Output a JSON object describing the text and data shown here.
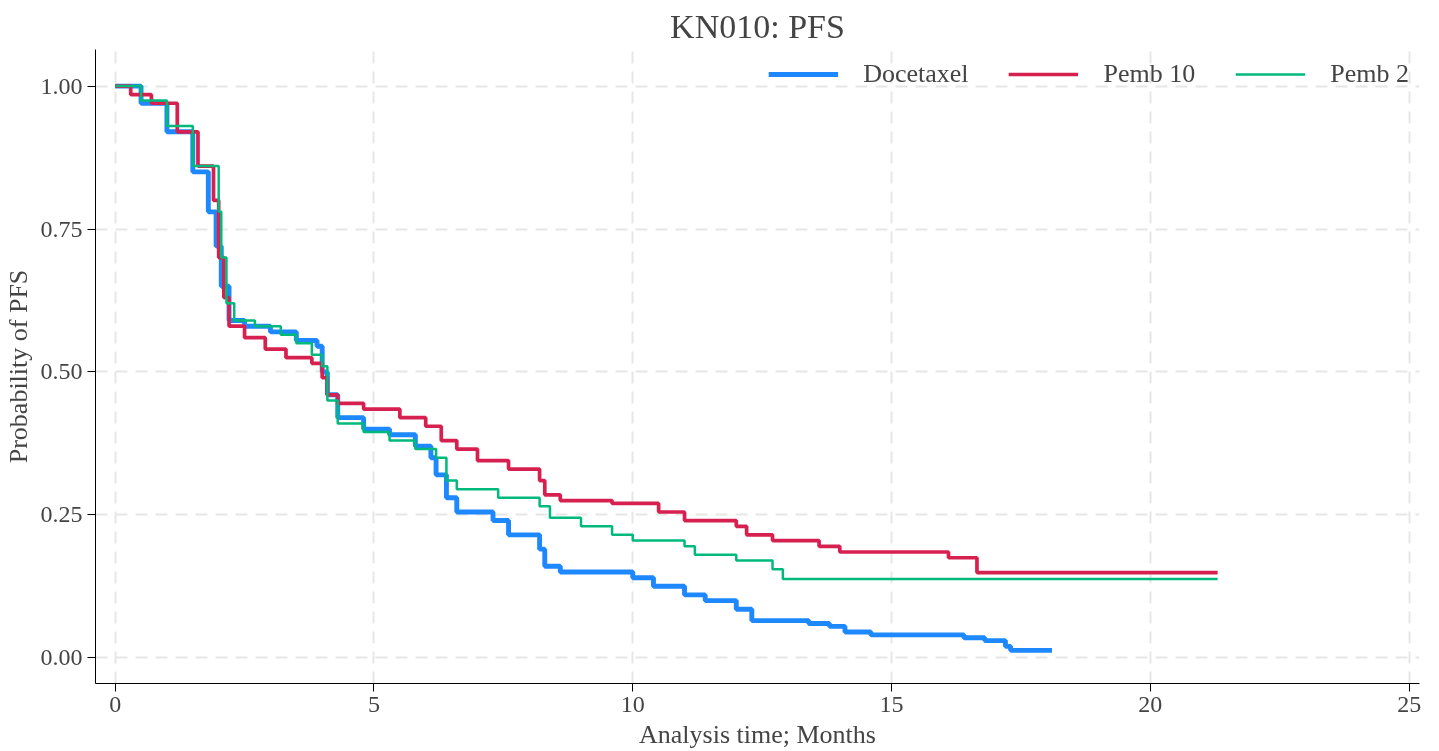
{
  "chart_data": {
    "type": "step",
    "title": "KN010: PFS",
    "xlabel": "Analysis time; Months",
    "ylabel": "Probability of PFS",
    "xlim": [
      -0.38,
      25.2
    ],
    "ylim": [
      -0.045,
      1.064
    ],
    "xticks": [
      0,
      5,
      10,
      15,
      20,
      25
    ],
    "yticks": [
      {
        "value": 0,
        "label": "0.00"
      },
      {
        "value": 0.25,
        "label": "0.25"
      },
      {
        "value": 0.5,
        "label": "0.50"
      },
      {
        "value": 0.75,
        "label": "0.75"
      },
      {
        "value": 1,
        "label": "1.00"
      }
    ],
    "grid": true,
    "legend": "top right",
    "line_style": "solid",
    "series": [
      {
        "name": "Docetaxel",
        "color": "#1e88ff",
        "x": [
          0,
          0.5,
          1.0,
          1.5,
          1.8,
          1.95,
          2.05,
          2.2,
          2.5,
          3.0,
          3.5,
          3.9,
          4.0,
          4.1,
          4.3,
          4.8,
          5.3,
          5.8,
          6.1,
          6.2,
          6.4,
          6.6,
          7.3,
          7.6,
          8.2,
          8.3,
          8.6,
          10.0,
          10.4,
          11.0,
          11.4,
          12.0,
          12.3,
          13.4,
          13.8,
          14.1,
          14.6,
          16.4,
          16.8,
          17.2,
          17.3,
          18.1
        ],
        "values": [
          1.0,
          0.97,
          0.92,
          0.85,
          0.78,
          0.72,
          0.65,
          0.59,
          0.58,
          0.57,
          0.555,
          0.545,
          0.5,
          0.46,
          0.42,
          0.4,
          0.39,
          0.37,
          0.35,
          0.32,
          0.28,
          0.255,
          0.24,
          0.215,
          0.19,
          0.16,
          0.15,
          0.14,
          0.125,
          0.11,
          0.1,
          0.085,
          0.065,
          0.06,
          0.055,
          0.045,
          0.04,
          0.035,
          0.03,
          0.02,
          0.013,
          0.013
        ]
      },
      {
        "name": "Pemb 10",
        "color": "#d6204f",
        "x": [
          0,
          0.3,
          0.7,
          1.2,
          1.6,
          1.9,
          2.0,
          2.1,
          2.2,
          2.5,
          2.9,
          3.3,
          3.8,
          4.0,
          4.1,
          4.3,
          4.8,
          5.5,
          6.0,
          6.3,
          6.6,
          7.0,
          7.6,
          8.2,
          8.3,
          8.6,
          9.6,
          10.5,
          11.0,
          12.0,
          12.2,
          12.7,
          13.6,
          14.0,
          16.1,
          16.65,
          21.3
        ],
        "values": [
          1.0,
          0.985,
          0.97,
          0.92,
          0.86,
          0.8,
          0.7,
          0.63,
          0.58,
          0.56,
          0.54,
          0.525,
          0.515,
          0.49,
          0.46,
          0.445,
          0.435,
          0.42,
          0.405,
          0.38,
          0.365,
          0.345,
          0.33,
          0.31,
          0.285,
          0.275,
          0.27,
          0.255,
          0.24,
          0.23,
          0.215,
          0.205,
          0.195,
          0.185,
          0.175,
          0.149,
          0.149
        ]
      },
      {
        "name": "Pemb 2",
        "color": "#00b97a",
        "x": [
          0,
          0.5,
          1.0,
          1.5,
          2.0,
          2.05,
          2.15,
          2.3,
          2.7,
          3.2,
          3.5,
          3.8,
          4.0,
          4.1,
          4.3,
          4.8,
          5.3,
          5.8,
          6.2,
          6.4,
          6.6,
          7.4,
          8.2,
          8.4,
          9.0,
          9.6,
          10.0,
          11.0,
          11.2,
          12.0,
          12.7,
          12.9,
          21.3
        ],
        "values": [
          1.0,
          0.975,
          0.93,
          0.86,
          0.78,
          0.7,
          0.62,
          0.59,
          0.58,
          0.565,
          0.55,
          0.53,
          0.51,
          0.45,
          0.41,
          0.395,
          0.38,
          0.365,
          0.35,
          0.31,
          0.295,
          0.28,
          0.265,
          0.245,
          0.23,
          0.215,
          0.205,
          0.195,
          0.18,
          0.17,
          0.155,
          0.138,
          0.138
        ]
      }
    ]
  }
}
